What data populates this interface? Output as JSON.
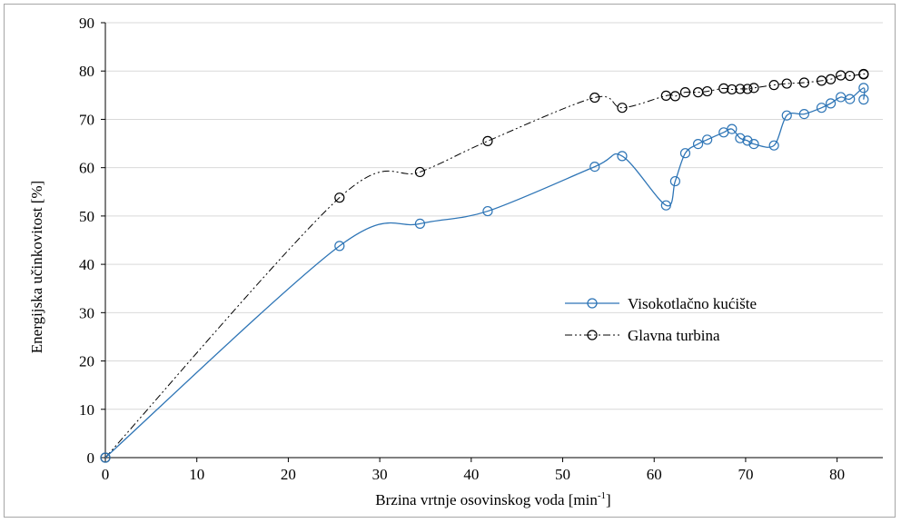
{
  "chart_data": {
    "type": "line",
    "xlabel": "Brzina vrtnje osovinskog voda [min",
    "xlabel_sup": "-1",
    "xlabel_tail": "]",
    "ylabel": "Energijska učinkovitost [%]",
    "xlim": [
      0,
      85
    ],
    "ylim": [
      0,
      90
    ],
    "x_ticks": [
      "0",
      "10",
      "20",
      "30",
      "40",
      "50",
      "60",
      "70",
      "80"
    ],
    "y_ticks": [
      "0",
      "10",
      "20",
      "30",
      "40",
      "50",
      "60",
      "70",
      "80",
      "90"
    ],
    "grid": "horizontal",
    "legend_position": "center-right",
    "series": [
      {
        "name": "Visokotlačno kućište",
        "color": "#2e75b6",
        "line_style": "solid",
        "marker": "open-circle",
        "x": [
          0,
          25.6,
          34.4,
          41.8,
          53.5,
          56.5,
          61.3,
          62.3,
          63.4,
          64.8,
          65.8,
          67.6,
          68.5,
          69.4,
          70.2,
          70.9,
          73.1,
          74.5,
          76.4,
          78.3,
          79.3,
          80.4,
          81.4,
          82.9,
          82.9
        ],
        "y": [
          0,
          43.8,
          48.4,
          51.0,
          60.2,
          62.4,
          52.2,
          57.2,
          63.0,
          64.9,
          65.8,
          67.3,
          68.0,
          66.1,
          65.6,
          64.9,
          64.6,
          70.8,
          71.1,
          72.4,
          73.3,
          74.6,
          74.2,
          76.5,
          74.1
        ]
      },
      {
        "name": "Glavna turbina",
        "color": "#000000",
        "line_style": "dash-dot-dot",
        "marker": "open-circle",
        "x": [
          0,
          25.6,
          34.4,
          41.8,
          53.5,
          56.5,
          61.3,
          62.3,
          63.4,
          64.8,
          65.8,
          67.6,
          68.5,
          69.4,
          70.2,
          70.9,
          73.1,
          74.5,
          76.4,
          78.3,
          79.3,
          80.4,
          81.4,
          82.9,
          82.9
        ],
        "y": [
          0,
          53.8,
          59.1,
          65.5,
          74.5,
          72.4,
          74.9,
          74.8,
          75.6,
          75.6,
          75.8,
          76.4,
          76.2,
          76.3,
          76.3,
          76.5,
          77.1,
          77.4,
          77.6,
          78.0,
          78.3,
          79.1,
          79.0,
          79.4,
          79.3
        ]
      }
    ]
  }
}
